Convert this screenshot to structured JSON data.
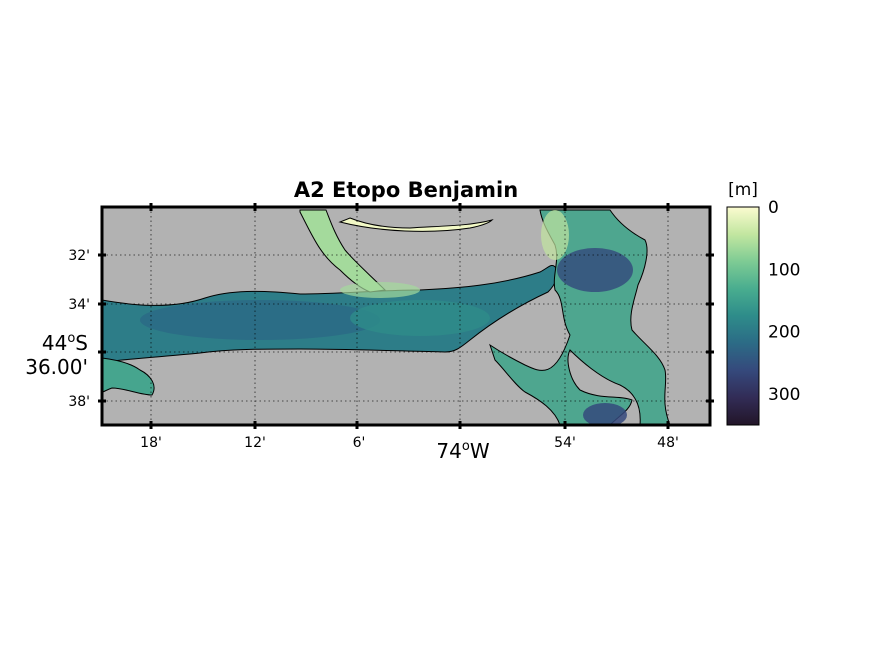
{
  "title": "A2 Etopo Benjamin",
  "colorbar": {
    "unit_label": "[m]",
    "ticks": [
      "0",
      "100",
      "200",
      "300"
    ],
    "tick_values": [
      0,
      100,
      200,
      300
    ],
    "range": [
      0,
      350
    ],
    "colormap": [
      "#fbfbd0",
      "#c2e6a0",
      "#7ecb94",
      "#49ad8f",
      "#2e8c8a",
      "#2c6b86",
      "#35497c",
      "#322c56",
      "#221528"
    ]
  },
  "map": {
    "land_color": "#b2b2b2",
    "coastline_color": "#000000",
    "grid": true,
    "x_ticks": [
      "18'",
      "12'",
      "6'",
      "54'",
      "48'"
    ],
    "x_center_label": {
      "deg": "74",
      "o": "o",
      "hemi": "W"
    },
    "y_ticks": [
      "32'",
      "34'",
      "38'"
    ],
    "y_center_label": {
      "deg": "44",
      "o": "o",
      "hemi": "S",
      "min": "36.00'"
    }
  },
  "chart_data": {
    "type": "heatmap",
    "title": "A2 Etopo Benjamin",
    "xlabel": "74°W",
    "ylabel": "44°S 36.00'",
    "xlim": [
      -74.35,
      -73.78
    ],
    "ylim": [
      -44.65,
      -44.5
    ],
    "x_ticks": [
      -74.3,
      -74.2,
      -74.1,
      -74.0,
      -73.9,
      -73.8
    ],
    "y_ticks": [
      -44.533,
      -44.567,
      -44.6,
      -44.633
    ],
    "colorbar_label": "[m]",
    "colorbar_range": [
      0,
      350
    ],
    "colorbar_ticks": [
      0,
      100,
      200,
      300
    ]
  }
}
